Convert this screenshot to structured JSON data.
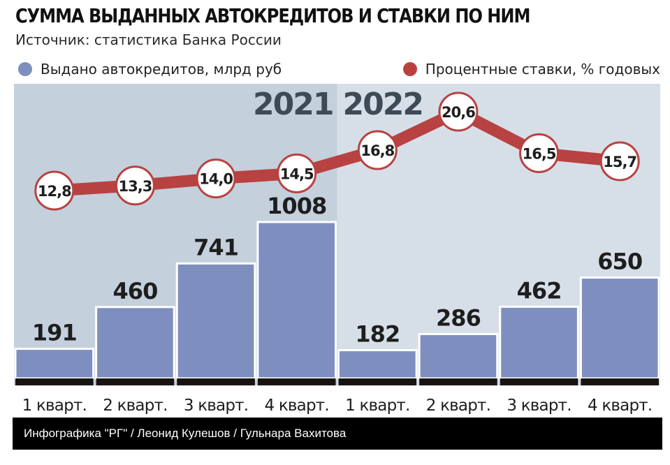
{
  "header": {
    "title": "СУММА ВЫДАННЫХ АВТОКРЕДИТОВ И СТАВКИ ПО НИМ",
    "subtitle": "Источник: статистика Банка России"
  },
  "legend": {
    "bars_label": "Выдано автокредитов, млрд руб",
    "line_label": "Процентные ставки, % годовых"
  },
  "footer": {
    "credit": "Инфографика \"РГ\" / Леонид Кулешов / Гульнара Вахитова"
  },
  "chart_data": {
    "type": "bar",
    "categories": [
      "1 кварт.",
      "2 кварт.",
      "3 кварт.",
      "4 кварт.",
      "1 кварт.",
      "2 кварт.",
      "3 кварт.",
      "4 кварт."
    ],
    "year_labels": [
      "2021",
      "2022"
    ],
    "series": [
      {
        "type": "bar",
        "values": [
          191,
          460,
          741,
          1008,
          182,
          286,
          462,
          650
        ],
        "value_labels": [
          "191",
          "460",
          "741",
          "1008",
          "182",
          "286",
          "462",
          "650"
        ],
        "color": "#7e8fbf"
      },
      {
        "type": "line",
        "values": [
          12.8,
          13.3,
          14.0,
          14.5,
          16.8,
          20.6,
          16.5,
          15.7
        ],
        "value_labels": [
          "12,8",
          "13,3",
          "14,0",
          "14,5",
          "16,8",
          "20,6",
          "16,5",
          "15,7"
        ],
        "color": "#b84242"
      }
    ],
    "bar_ylim": [
      0,
      1100
    ],
    "line_ylim": [
      10,
      22
    ],
    "colors": {
      "bar_fill": "#7e8fbf",
      "bar_edge": "#ffffff",
      "bar_base": "#1a1410",
      "line": "#b84242",
      "marker_fill": "#ffffff",
      "marker_edge": "#b84242",
      "background_2021": "#c4d0dc",
      "background_2022": "#d6dfe8",
      "year_label": "#3e4a56"
    },
    "grid": false,
    "legend_position": "top"
  }
}
